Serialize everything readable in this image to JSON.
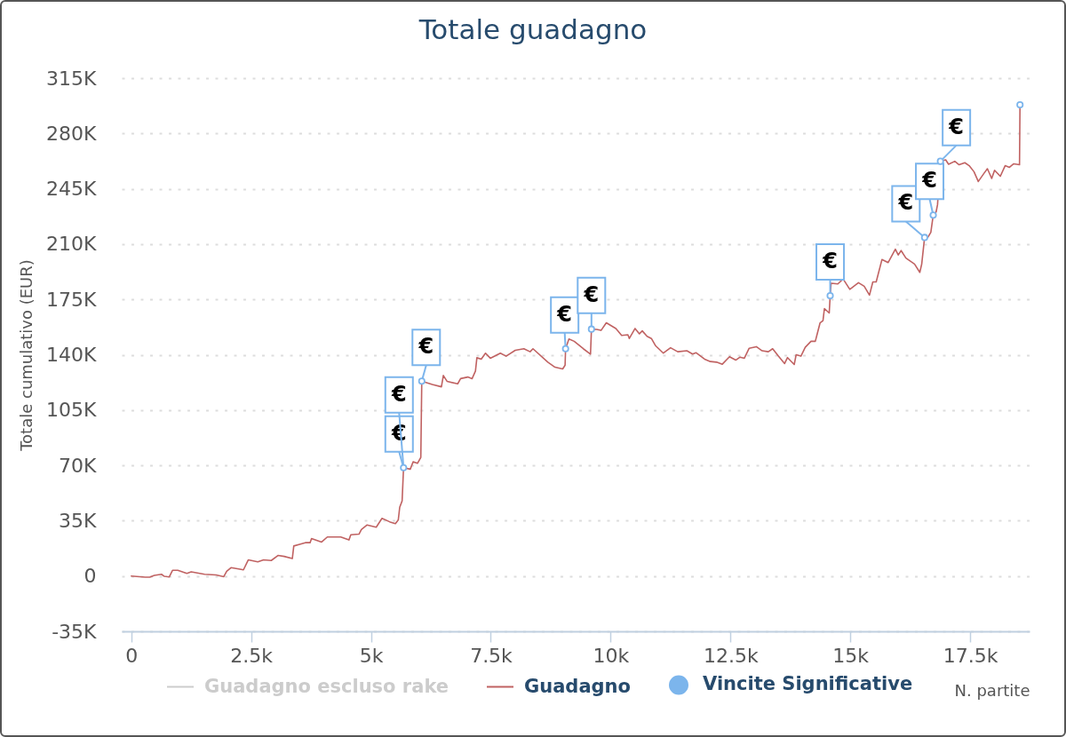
{
  "chart_data": {
    "type": "line",
    "title": "Totale guadagno",
    "xlabel": "N. partite",
    "ylabel": "Totale cumulativo (EUR)",
    "xlim": [
      -200,
      18740
    ],
    "xticks": [
      0,
      {
        "value": 2500,
        "label": "2.5k"
      },
      {
        "value": 5000,
        "label": "5k"
      },
      {
        "value": 7500,
        "label": "7.5k"
      },
      {
        "value": 10000,
        "label": "10k"
      },
      {
        "value": 12500,
        "label": "12.5k"
      },
      {
        "value": 15000,
        "label": "15k"
      },
      {
        "value": 17500,
        "label": "17.5k"
      }
    ],
    "ylim": [
      -35000,
      315000
    ],
    "yticks": [
      {
        "value": -35000,
        "label": "-35K"
      },
      0,
      {
        "value": 35000,
        "label": "35K"
      },
      {
        "value": 70000,
        "label": "70K"
      },
      {
        "value": 105000,
        "label": "105K"
      },
      {
        "value": 140000,
        "label": "140K"
      },
      {
        "value": 175000,
        "label": "175K"
      },
      {
        "value": 210000,
        "label": "210K"
      },
      {
        "value": 245000,
        "label": "245K"
      },
      {
        "value": 280000,
        "label": "280K"
      },
      {
        "value": 315000,
        "label": "315K"
      }
    ],
    "grid": "y",
    "legend": "bottom",
    "series": [
      {
        "name": "Guadagno escluso rake",
        "color": "#cccccc"
      },
      {
        "name": "Guadagno",
        "color": "#c06262",
        "x": [
          0,
          290,
          385,
          480,
          630,
          690,
          790,
          860,
          970,
          1160,
          1250,
          1530,
          1770,
          1930,
          1990,
          2080,
          2240,
          2340,
          2440,
          2640,
          2760,
          2920,
          3060,
          3190,
          3360,
          3390,
          3530,
          3630,
          3730,
          3760,
          3970,
          4090,
          4370,
          4540,
          4580,
          4750,
          4800,
          4920,
          5110,
          5230,
          5390,
          5510,
          5570,
          5600,
          5650,
          5680,
          5820,
          5880,
          5970,
          6040,
          6060,
          6280,
          6470,
          6510,
          6590,
          6810,
          6870,
          7020,
          7110,
          7180,
          7210,
          7300,
          7390,
          7490,
          7700,
          7820,
          8010,
          8190,
          8320,
          8380,
          8690,
          8840,
          9000,
          9050,
          9060,
          9130,
          9240,
          9430,
          9580,
          9600,
          9710,
          9800,
          9910,
          10110,
          10230,
          10360,
          10390,
          10510,
          10600,
          10660,
          10760,
          10850,
          10940,
          11100,
          11250,
          11400,
          11590,
          11710,
          11780,
          11960,
          12080,
          12210,
          12330,
          12480,
          12610,
          12700,
          12790,
          12890,
          13040,
          13160,
          13290,
          13380,
          13500,
          13630,
          13690,
          13830,
          13870,
          13970,
          14060,
          14180,
          14270,
          14310,
          14370,
          14430,
          14460,
          14560,
          14580,
          14600,
          14740,
          14850,
          14990,
          15170,
          15290,
          15400,
          15470,
          15540,
          15660,
          15790,
          15940,
          16000,
          16060,
          16160,
          16340,
          16450,
          16490,
          16550,
          16620,
          16680,
          16730,
          16790,
          16820,
          16880,
          16990,
          17050,
          17180,
          17270,
          17390,
          17480,
          17580,
          17670,
          17790,
          17860,
          17950,
          18010,
          18130,
          18230,
          18320,
          18410,
          18530,
          18540
        ],
        "values": [
          0,
          -700,
          -700,
          400,
          1100,
          -200,
          -600,
          3600,
          3600,
          1700,
          2600,
          1100,
          700,
          -400,
          3000,
          5300,
          4500,
          3900,
          10200,
          9000,
          10200,
          9800,
          13000,
          12400,
          11100,
          19000,
          20200,
          21100,
          21100,
          23700,
          21500,
          24700,
          24700,
          22800,
          26100,
          26500,
          29400,
          32300,
          30900,
          36500,
          34300,
          33100,
          35500,
          43500,
          47500,
          68500,
          67600,
          72300,
          71300,
          75100,
          123300,
          121200,
          119700,
          126900,
          123100,
          121600,
          124900,
          125900,
          124900,
          129700,
          138100,
          137200,
          141000,
          137800,
          141000,
          139100,
          142800,
          143800,
          141900,
          143800,
          135300,
          132100,
          131000,
          133400,
          143800,
          150000,
          148500,
          143800,
          140400,
          156200,
          156000,
          155400,
          160200,
          156600,
          152200,
          152600,
          150300,
          156600,
          153200,
          155100,
          151700,
          150300,
          145600,
          141000,
          144400,
          141900,
          142500,
          140400,
          141300,
          137200,
          135700,
          135300,
          134000,
          138700,
          136600,
          138500,
          137800,
          144100,
          145100,
          142500,
          141900,
          143800,
          139100,
          134400,
          138200,
          133800,
          140000,
          139100,
          144700,
          148500,
          148500,
          153200,
          160200,
          161600,
          169200,
          166400,
          177300,
          185200,
          184800,
          188000,
          181400,
          185600,
          183300,
          177700,
          186100,
          186100,
          200200,
          198300,
          206800,
          203100,
          205900,
          201200,
          197400,
          192100,
          197400,
          214200,
          214400,
          217500,
          228300,
          230300,
          235000,
          262400,
          263300,
          260500,
          262400,
          260200,
          261500,
          259600,
          255800,
          249600,
          254800,
          257700,
          251500,
          256700,
          252900,
          259600,
          258600,
          260800,
          260200,
          298100
        ]
      },
      {
        "name": "Vincite Significative",
        "color": "#7cb5ec",
        "type": "scatter",
        "marker": "circle",
        "x": [
          5680,
          6060,
          9060,
          9600,
          14580,
          16550,
          16730,
          16880,
          18540
        ],
        "values": [
          68500,
          123300,
          143800,
          156200,
          177300,
          214200,
          228300,
          262400,
          298100
        ]
      }
    ],
    "annotations": [
      {
        "text": "€",
        "x": 5680,
        "y": 68500
      },
      {
        "text": "€",
        "x": 5680,
        "y": 68500
      },
      {
        "text": "€",
        "x": 6060,
        "y": 123300
      },
      {
        "text": "€",
        "x": 9060,
        "y": 143800
      },
      {
        "text": "€",
        "x": 9600,
        "y": 156200
      },
      {
        "text": "€",
        "x": 14580,
        "y": 177300
      },
      {
        "text": "€",
        "x": 16550,
        "y": 214200
      },
      {
        "text": "€",
        "x": 16730,
        "y": 228300
      },
      {
        "text": "€",
        "x": 16880,
        "y": 262400
      }
    ]
  }
}
